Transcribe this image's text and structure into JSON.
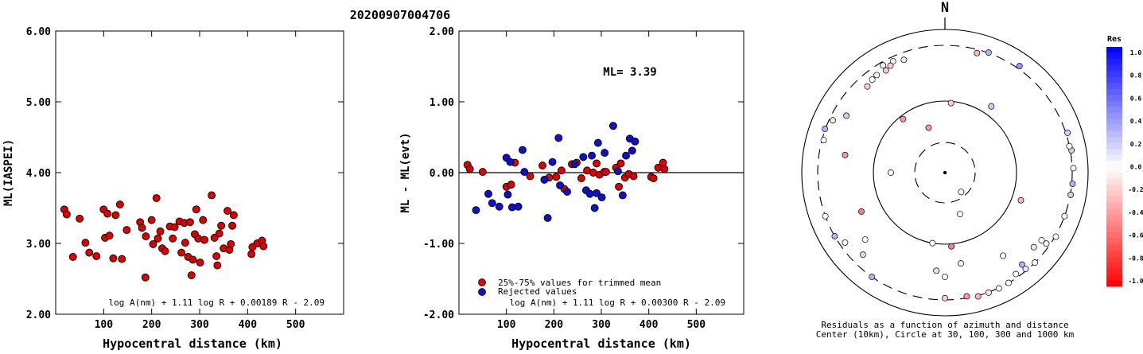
{
  "title": "20200907004706",
  "chart_data": [
    {
      "type": "scatter",
      "ylabel": "ML(IASPEI)",
      "xlabel": "Hypocentral distance (km)",
      "xlim": [
        0,
        600
      ],
      "ylim": [
        2.0,
        6.0
      ],
      "xticks": [
        "100",
        "200",
        "300",
        "400",
        "500"
      ],
      "yticks": [
        "2.00",
        "3.00",
        "4.00",
        "5.00",
        "6.00"
      ],
      "formula": "log A(nm) + 1.11 log R + 0.00189 R - 2.09",
      "points": [
        [
          18,
          3.48
        ],
        [
          23,
          3.41
        ],
        [
          36,
          2.81
        ],
        [
          50,
          3.35
        ],
        [
          62,
          3.01
        ],
        [
          70,
          2.87
        ],
        [
          85,
          2.82
        ],
        [
          100,
          3.48
        ],
        [
          103,
          3.08
        ],
        [
          108,
          3.42
        ],
        [
          112,
          3.11
        ],
        [
          120,
          2.79
        ],
        [
          125,
          3.4
        ],
        [
          134,
          3.55
        ],
        [
          138,
          2.78
        ],
        [
          148,
          3.19
        ],
        [
          176,
          3.3
        ],
        [
          180,
          3.22
        ],
        [
          187,
          2.52
        ],
        [
          188,
          3.1
        ],
        [
          200,
          3.33
        ],
        [
          203,
          2.99
        ],
        [
          210,
          3.64
        ],
        [
          213,
          3.07
        ],
        [
          218,
          3.17
        ],
        [
          222,
          2.93
        ],
        [
          228,
          2.89
        ],
        [
          238,
          3.24
        ],
        [
          244,
          3.07
        ],
        [
          248,
          3.23
        ],
        [
          258,
          3.31
        ],
        [
          262,
          2.87
        ],
        [
          268,
          3.29
        ],
        [
          270,
          3.01
        ],
        [
          276,
          2.81
        ],
        [
          280,
          3.3
        ],
        [
          283,
          2.55
        ],
        [
          286,
          2.77
        ],
        [
          290,
          3.13
        ],
        [
          293,
          3.48
        ],
        [
          297,
          3.07
        ],
        [
          301,
          2.73
        ],
        [
          307,
          3.33
        ],
        [
          310,
          3.05
        ],
        [
          325,
          3.68
        ],
        [
          331,
          3.08
        ],
        [
          335,
          2.82
        ],
        [
          337,
          2.69
        ],
        [
          341,
          3.14
        ],
        [
          345,
          3.25
        ],
        [
          350,
          2.93
        ],
        [
          358,
          3.46
        ],
        [
          362,
          2.91
        ],
        [
          365,
          2.99
        ],
        [
          368,
          3.25
        ],
        [
          371,
          3.4
        ],
        [
          408,
          2.85
        ],
        [
          410,
          2.95
        ],
        [
          420,
          3.0
        ],
        [
          430,
          3.04
        ],
        [
          433,
          2.96
        ]
      ]
    },
    {
      "type": "scatter",
      "ylabel": "ML - ML(evt)",
      "xlabel": "Hypocentral distance (km)",
      "xlim": [
        0,
        600
      ],
      "ylim": [
        -2.0,
        2.0
      ],
      "xticks": [
        "100",
        "200",
        "300",
        "400",
        "500"
      ],
      "yticks": [
        "-2.00",
        "-1.00",
        "0.00",
        "1.00",
        "2.00"
      ],
      "annotation": "ML= 3.39",
      "legend": [
        {
          "label": "25%-75% values for trimmed mean",
          "color": "#dd0000"
        },
        {
          "label": "Rejected values",
          "color": "#1010cc"
        }
      ],
      "formula": "log A(nm) + 1.11 log R + 0.00300 R - 2.09",
      "series": [
        {
          "name": "25%-75% values for trimmed mean",
          "color": "#dd0000",
          "points": [
            [
              18,
              0.11
            ],
            [
              23,
              0.05
            ],
            [
              50,
              0.01
            ],
            [
              100,
              -0.2
            ],
            [
              110,
              -0.17
            ],
            [
              118,
              0.14
            ],
            [
              150,
              -0.05
            ],
            [
              176,
              0.1
            ],
            [
              190,
              -0.07
            ],
            [
              205,
              -0.06
            ],
            [
              216,
              0.03
            ],
            [
              222,
              -0.23
            ],
            [
              238,
              0.12
            ],
            [
              248,
              0.14
            ],
            [
              258,
              -0.08
            ],
            [
              270,
              0.03
            ],
            [
              283,
              0.0
            ],
            [
              290,
              0.13
            ],
            [
              296,
              -0.03
            ],
            [
              306,
              0.01
            ],
            [
              310,
              0.01
            ],
            [
              331,
              0.07
            ],
            [
              337,
              -0.2
            ],
            [
              341,
              0.13
            ],
            [
              350,
              -0.07
            ],
            [
              358,
              -0.02
            ],
            [
              368,
              -0.05
            ],
            [
              405,
              -0.06
            ],
            [
              410,
              -0.08
            ],
            [
              420,
              0.07
            ],
            [
              430,
              0.14
            ],
            [
              433,
              0.05
            ]
          ]
        },
        {
          "name": "Rejected values",
          "color": "#1010cc",
          "points": [
            [
              36,
              -0.53
            ],
            [
              62,
              -0.3
            ],
            [
              70,
              -0.43
            ],
            [
              85,
              -0.48
            ],
            [
              100,
              0.21
            ],
            [
              103,
              -0.31
            ],
            [
              108,
              0.15
            ],
            [
              112,
              -0.49
            ],
            [
              125,
              -0.48
            ],
            [
              134,
              0.32
            ],
            [
              138,
              0.01
            ],
            [
              180,
              -0.1
            ],
            [
              187,
              -0.64
            ],
            [
              197,
              0.15
            ],
            [
              210,
              0.49
            ],
            [
              213,
              -0.18
            ],
            [
              228,
              -0.27
            ],
            [
              244,
              0.12
            ],
            [
              262,
              0.22
            ],
            [
              268,
              -0.25
            ],
            [
              276,
              -0.3
            ],
            [
              280,
              0.24
            ],
            [
              286,
              -0.5
            ],
            [
              290,
              -0.29
            ],
            [
              293,
              0.42
            ],
            [
              301,
              -0.35
            ],
            [
              307,
              0.28
            ],
            [
              325,
              0.66
            ],
            [
              335,
              0.02
            ],
            [
              345,
              -0.32
            ],
            [
              352,
              0.24
            ],
            [
              360,
              0.48
            ],
            [
              365,
              0.31
            ],
            [
              371,
              0.44
            ]
          ]
        }
      ]
    },
    {
      "type": "polar_scatter",
      "north_label": "N",
      "caption_line1": "Residuals as a function of azimuth and distance",
      "caption_line2": "Center (10km), Circle at 30, 100, 300 and 1000 km",
      "colorbar": {
        "title": "Res",
        "range": [
          -1.0,
          1.0
        ],
        "ticks": [
          "1.0",
          "0.8",
          "0.6",
          "0.4",
          "0.2",
          "0.0",
          "-0.2",
          "-0.4",
          "-0.6",
          "-0.8",
          "-1.0"
        ],
        "pos_color": "#0000ff",
        "neg_color": "#ff0000"
      },
      "points": [
        {
          "az": 340,
          "dist": 260,
          "res": 0.1
        },
        {
          "az": 335,
          "dist": 275,
          "res": -0.05
        },
        {
          "az": 330,
          "dist": 280,
          "res": 0.05
        },
        {
          "az": 333,
          "dist": 260,
          "res": -0.2
        },
        {
          "az": 330,
          "dist": 250,
          "res": -0.2
        },
        {
          "az": 325,
          "dist": 255,
          "res": 0.05
        },
        {
          "az": 322,
          "dist": 250,
          "res": 0.0
        },
        {
          "az": 318,
          "dist": 240,
          "res": -0.2
        },
        {
          "az": 15,
          "dist": 280,
          "res": -0.3
        },
        {
          "az": 20,
          "dist": 310,
          "res": 0.3
        },
        {
          "az": 35,
          "dist": 370,
          "res": 0.4
        },
        {
          "az": 5,
          "dist": 95,
          "res": -0.2
        },
        {
          "az": 35,
          "dist": 120,
          "res": 0.2
        },
        {
          "az": 322,
          "dist": 90,
          "res": -0.4
        },
        {
          "az": 340,
          "dist": 50,
          "res": -0.4
        },
        {
          "az": 300,
          "dist": 230,
          "res": 0.2
        },
        {
          "az": 295,
          "dist": 280,
          "res": -0.1
        },
        {
          "az": 290,
          "dist": 310,
          "res": 0.3
        },
        {
          "az": 285,
          "dist": 290,
          "res": 0.0
        },
        {
          "az": 280,
          "dist": 180,
          "res": -0.4
        },
        {
          "az": 270,
          "dist": 60,
          "res": 0.0
        },
        {
          "az": 250,
          "dist": 300,
          "res": 0.0
        },
        {
          "az": 240,
          "dist": 300,
          "res": 0.3
        },
        {
          "az": 235,
          "dist": 270,
          "res": 0.0
        },
        {
          "az": 230,
          "dist": 190,
          "res": 0.0
        },
        {
          "az": 225,
          "dist": 240,
          "res": -0.2
        },
        {
          "az": 215,
          "dist": 300,
          "res": 0.3
        },
        {
          "az": 245,
          "dist": 150,
          "res": -0.5
        },
        {
          "az": 190,
          "dist": 100,
          "res": 0.0
        },
        {
          "az": 175,
          "dist": 105,
          "res": -0.5
        },
        {
          "az": 185,
          "dist": 170,
          "res": 0.1
        },
        {
          "az": 180,
          "dist": 190,
          "res": 0.0
        },
        {
          "az": 170,
          "dist": 150,
          "res": -0.1
        },
        {
          "az": 170,
          "dist": 290,
          "res": -0.4
        },
        {
          "az": 180,
          "dist": 290,
          "res": -0.2
        },
        {
          "az": 165,
          "dist": 320,
          "res": -0.3
        },
        {
          "az": 160,
          "dist": 310,
          "res": -0.1
        },
        {
          "az": 155,
          "dist": 310,
          "res": 0.0
        },
        {
          "az": 150,
          "dist": 300,
          "res": 0.0
        },
        {
          "az": 145,
          "dist": 280,
          "res": 0.0
        },
        {
          "az": 140,
          "dist": 290,
          "res": 0.1
        },
        {
          "az": 140,
          "dist": 260,
          "res": 0.3
        },
        {
          "az": 135,
          "dist": 300,
          "res": 0.0
        },
        {
          "az": 145,
          "dist": 180,
          "res": 0.0
        },
        {
          "az": 125,
          "dist": 250,
          "res": 0.0
        },
        {
          "az": 130,
          "dist": 240,
          "res": 0.1
        },
        {
          "az": 125,
          "dist": 280,
          "res": 0.0
        },
        {
          "az": 120,
          "dist": 320,
          "res": 0.0
        },
        {
          "az": 110,
          "dist": 300,
          "res": 0.0
        },
        {
          "az": 100,
          "dist": 310,
          "res": 0.2
        },
        {
          "az": 95,
          "dist": 320,
          "res": 0.3
        },
        {
          "az": 88,
          "dist": 330,
          "res": 0.0
        },
        {
          "az": 80,
          "dist": 330,
          "res": 0.2
        },
        {
          "az": 78,
          "dist": 300,
          "res": 0.0
        },
        {
          "az": 72,
          "dist": 340,
          "res": 0.2
        },
        {
          "az": 110,
          "dist": 120,
          "res": -0.3
        },
        {
          "az": 160,
          "dist": 45,
          "res": 0.0
        },
        {
          "az": 140,
          "dist": 25,
          "res": 0.0
        }
      ]
    }
  ]
}
